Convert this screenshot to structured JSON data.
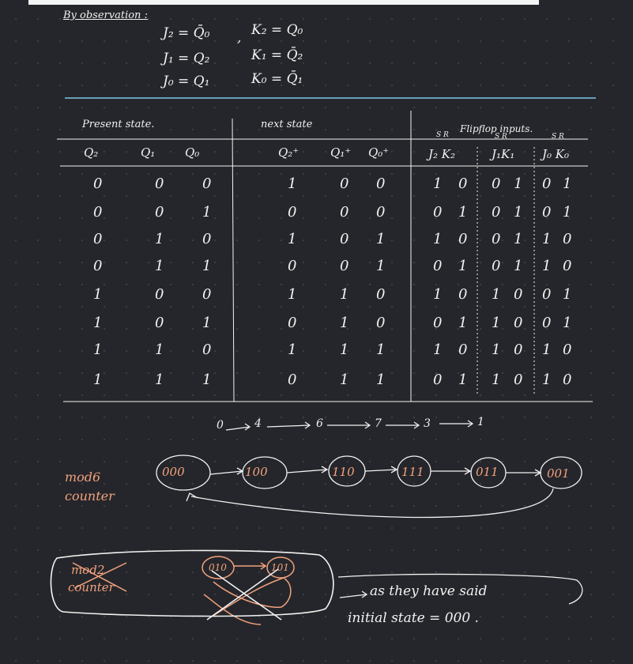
{
  "observation": {
    "heading": "By observation :",
    "equations": [
      "J₂ = Q̄₀",
      "J₁ = Q₂",
      "J₀ = Q₁"
    ],
    "separator": ",",
    "k_equations": [
      "K₂ = Q₀",
      "K₁ = Q̄₂",
      "K₀ = Q̄₁"
    ]
  },
  "table": {
    "present_state_label": "Present state.",
    "next_state_label": "next state",
    "flipflop_label": "Flipflop inputs.",
    "sr_marks": [
      "S R",
      "S R",
      "S R"
    ],
    "present_headers": [
      "Q₂",
      "Q₁",
      "Q₀"
    ],
    "next_headers": [
      "Q₂⁺",
      "Q₁⁺",
      "Q₀⁺"
    ],
    "input_headers": [
      "J₂ K₂",
      "J₁K₁",
      "J₀ K₀"
    ],
    "rows": [
      {
        "present": [
          "0",
          "0",
          "0"
        ],
        "next": [
          "1",
          "0",
          "0"
        ],
        "jk2": [
          "1",
          "0"
        ],
        "jk1": [
          "0",
          "1"
        ],
        "jk0": [
          "0",
          "1"
        ]
      },
      {
        "present": [
          "0",
          "0",
          "1"
        ],
        "next": [
          "0",
          "0",
          "0"
        ],
        "jk2": [
          "0",
          "1"
        ],
        "jk1": [
          "0",
          "1"
        ],
        "jk0": [
          "0",
          "1"
        ]
      },
      {
        "present": [
          "0",
          "1",
          "0"
        ],
        "next": [
          "1",
          "0",
          "1"
        ],
        "jk2": [
          "1",
          "0"
        ],
        "jk1": [
          "0",
          "1"
        ],
        "jk0": [
          "1",
          "0"
        ]
      },
      {
        "present": [
          "0",
          "1",
          "1"
        ],
        "next": [
          "0",
          "0",
          "1"
        ],
        "jk2": [
          "0",
          "1"
        ],
        "jk1": [
          "0",
          "1"
        ],
        "jk0": [
          "1",
          "0"
        ]
      },
      {
        "present": [
          "1",
          "0",
          "0"
        ],
        "next": [
          "1",
          "1",
          "0"
        ],
        "jk2": [
          "1",
          "0"
        ],
        "jk1": [
          "1",
          "0"
        ],
        "jk0": [
          "0",
          "1"
        ]
      },
      {
        "present": [
          "1",
          "0",
          "1"
        ],
        "next": [
          "0",
          "1",
          "0"
        ],
        "jk2": [
          "0",
          "1"
        ],
        "jk1": [
          "1",
          "0"
        ],
        "jk0": [
          "0",
          "1"
        ]
      },
      {
        "present": [
          "1",
          "1",
          "0"
        ],
        "next": [
          "1",
          "1",
          "1"
        ],
        "jk2": [
          "1",
          "0"
        ],
        "jk1": [
          "1",
          "0"
        ],
        "jk0": [
          "1",
          "0"
        ]
      },
      {
        "present": [
          "1",
          "1",
          "1"
        ],
        "next": [
          "0",
          "1",
          "1"
        ],
        "jk2": [
          "0",
          "1"
        ],
        "jk1": [
          "1",
          "0"
        ],
        "jk0": [
          "1",
          "0"
        ]
      }
    ]
  },
  "sequence": {
    "items": [
      "0",
      "4",
      "6",
      "7",
      "3",
      "1"
    ]
  },
  "mod6": {
    "label_line1": "mod6",
    "label_line2": "counter",
    "states": [
      "000",
      "100",
      "110",
      "111",
      "011",
      "001"
    ]
  },
  "mod2": {
    "label_line1": "mod2",
    "label_line2": "counter",
    "states": [
      "010",
      "101"
    ]
  },
  "note": {
    "line1": "as they have said",
    "line2": "initial state = 000 ."
  },
  "colors": {
    "background": "#25262b",
    "ink": "#f2f2f2",
    "accent": "#f1a27d"
  }
}
